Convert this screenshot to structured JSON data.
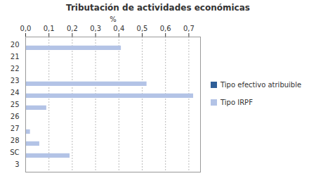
{
  "chart_data": {
    "type": "bar",
    "orientation": "horizontal",
    "title": "Tributación de actividades económicas",
    "x_label": "%",
    "categories": [
      "20",
      "21",
      "22",
      "23",
      "24",
      "25",
      "26",
      "27",
      "28",
      "SC",
      "3"
    ],
    "series": [
      {
        "name": "Tipo efectivo atribuible",
        "color": "#2f5f98",
        "values": [
          0,
          0,
          0,
          0,
          0,
          0,
          0,
          0,
          0,
          0,
          0
        ]
      },
      {
        "name": "Tipo IRPF",
        "color": "#b3c3e6",
        "values": [
          0.41,
          0,
          0,
          0.52,
          0.72,
          0.09,
          0,
          0.02,
          0.06,
          0.19,
          0
        ]
      }
    ],
    "xlim": [
      0,
      0.75
    ],
    "xticks": [
      {
        "value": 0,
        "label": "0,0"
      },
      {
        "value": 0.1,
        "label": "0,1"
      },
      {
        "value": 0.2,
        "label": "0,2"
      },
      {
        "value": 0.3,
        "label": "0,3"
      },
      {
        "value": 0.4,
        "label": "0,4"
      },
      {
        "value": 0.5,
        "label": "0,5"
      },
      {
        "value": 0.6,
        "label": "0,6"
      },
      {
        "value": 0.7,
        "label": "0,7"
      }
    ],
    "grid": true,
    "legend": "right"
  }
}
